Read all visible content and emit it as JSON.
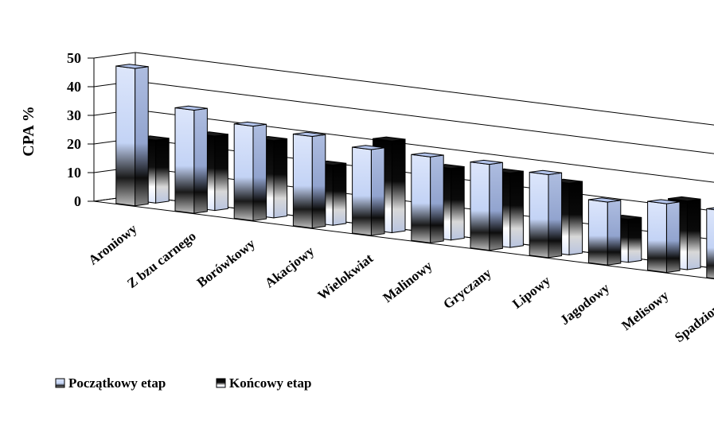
{
  "chart_data": {
    "type": "bar",
    "title": "",
    "xlabel": "",
    "ylabel": "CPA %",
    "ylim": [
      0,
      50
    ],
    "yticks": [
      "0",
      "10",
      "20",
      "30",
      "40",
      "50"
    ],
    "grid": true,
    "legend_position": "bottom-left",
    "categories": [
      "Aroniowy",
      "Z bzu carnego",
      "Borówkowy",
      "Akacjowy",
      "Wielokwiat",
      "Malinowy",
      "Gryczany",
      "Lipowy",
      "Jagodowy",
      "Melisowy",
      "Spadziowy"
    ],
    "series": [
      {
        "name": "Początkowy etap",
        "color": "#c3d3f5",
        "values": [
          48,
          36,
          33,
          32,
          30,
          30,
          30,
          29,
          22,
          24,
          24
        ]
      },
      {
        "name": "Końcowy etap",
        "color": "#000000",
        "values": [
          22,
          26,
          27,
          21,
          32,
          25,
          26,
          25,
          15,
          24,
          28
        ]
      }
    ]
  }
}
